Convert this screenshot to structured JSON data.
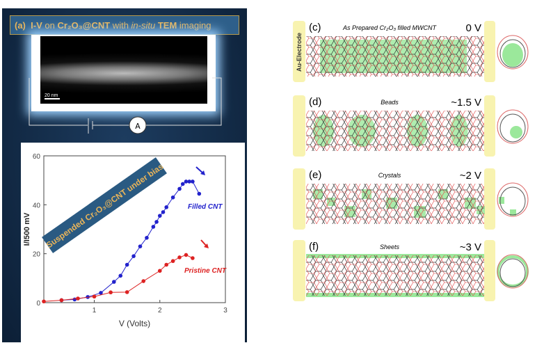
{
  "panel_a": {
    "title_prefix": "(a)",
    "title_iv": "I-V",
    "title_on": " on ",
    "title_mat": "Cr₂O₃@CNT",
    "title_with": " with ",
    "title_insitu": "in-situ",
    "title_tem": " TEM",
    "title_end": " imaging",
    "scale_bar": "20 nm",
    "ammeter": "A"
  },
  "chart_data": {
    "type": "line",
    "title": "",
    "xlabel": "V (Volts)",
    "ylabel": "I/I500 mV",
    "xlim": [
      0.23,
      3
    ],
    "ylim": [
      0,
      60
    ],
    "xticks": [
      1,
      2,
      3
    ],
    "yticks": [
      0,
      20,
      40,
      60
    ],
    "banner": "Suspended Cr₂O₃@CNT under bias",
    "series": [
      {
        "name": "Filled CNT",
        "color": "#2222cc",
        "x": [
          0.5,
          0.7,
          0.9,
          1.1,
          1.3,
          1.4,
          1.5,
          1.6,
          1.7,
          1.8,
          1.9,
          1.95,
          2.0,
          2.05,
          2.1,
          2.2,
          2.3,
          2.35,
          2.4,
          2.45,
          2.5,
          2.6
        ],
        "y": [
          1,
          1.3,
          2.3,
          4,
          8.5,
          11,
          15.5,
          19,
          23,
          26.5,
          31,
          33,
          35.5,
          37,
          39,
          43,
          46.5,
          48.5,
          49.5,
          49.5,
          49.5,
          44.5
        ]
      },
      {
        "name": "Pristine CNT",
        "color": "#dd2222",
        "x": [
          0.23,
          0.5,
          0.75,
          1.0,
          1.25,
          1.5,
          1.75,
          2.0,
          2.1,
          2.2,
          2.3,
          2.4,
          2.5
        ],
        "y": [
          0.5,
          1,
          1.7,
          2.5,
          4.2,
          4.3,
          8.8,
          13,
          15.5,
          17,
          18.5,
          19.5,
          18.2
        ]
      }
    ]
  },
  "panels": [
    {
      "id": "(c)",
      "label": "As Prepared  Cr₂O₃ filled MWCNT",
      "voltage": "0 V",
      "state": "filled"
    },
    {
      "id": "(d)",
      "label": "Beads",
      "voltage": "~1.5 V",
      "state": "beads"
    },
    {
      "id": "(e)",
      "label": "Crystals",
      "voltage": "~2 V",
      "state": "crystals"
    },
    {
      "id": "(f)",
      "label": "Sheets",
      "voltage": "~3 V",
      "state": "sheets"
    }
  ],
  "electrode_label": "Au-Electrode"
}
